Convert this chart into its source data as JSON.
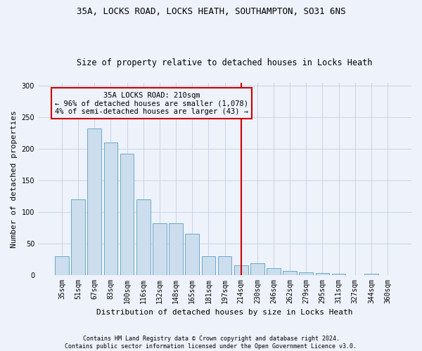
{
  "title": "35A, LOCKS ROAD, LOCKS HEATH, SOUTHAMPTON, SO31 6NS",
  "subtitle": "Size of property relative to detached houses in Locks Heath",
  "xlabel": "Distribution of detached houses by size in Locks Heath",
  "ylabel": "Number of detached properties",
  "footer": "Contains HM Land Registry data © Crown copyright and database right 2024.\nContains public sector information licensed under the Open Government Licence v3.0.",
  "bar_labels": [
    "35sqm",
    "51sqm",
    "67sqm",
    "83sqm",
    "100sqm",
    "116sqm",
    "132sqm",
    "148sqm",
    "165sqm",
    "181sqm",
    "197sqm",
    "214sqm",
    "230sqm",
    "246sqm",
    "262sqm",
    "279sqm",
    "295sqm",
    "311sqm",
    "327sqm",
    "344sqm",
    "360sqm"
  ],
  "bar_heights": [
    30,
    120,
    232,
    210,
    192,
    120,
    82,
    82,
    65,
    30,
    30,
    15,
    18,
    11,
    6,
    4,
    3,
    2,
    0,
    2,
    0
  ],
  "bar_color": "#ccdded",
  "bar_edge_color": "#6aaac8",
  "grid_color": "#c8d4e8",
  "background_color": "#eef2fa",
  "vline_x_index": 11,
  "vline_color": "#cc0000",
  "annotation_text": "35A LOCKS ROAD: 210sqm\n← 96% of detached houses are smaller (1,078)\n4% of semi-detached houses are larger (43) →",
  "annotation_box_color": "#cc0000",
  "ylim": [
    0,
    305
  ],
  "yticks": [
    0,
    50,
    100,
    150,
    200,
    250,
    300
  ],
  "title_fontsize": 9,
  "subtitle_fontsize": 8.5,
  "axis_label_fontsize": 8,
  "tick_fontsize": 7,
  "annotation_fontsize": 7.5,
  "footer_fontsize": 6
}
